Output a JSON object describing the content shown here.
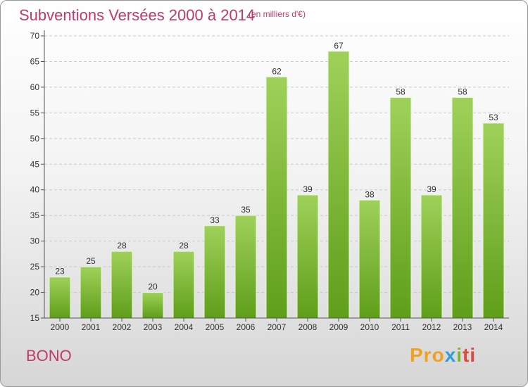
{
  "chart_data": {
    "type": "bar",
    "title": "Subventions Versées 2000 à 2014",
    "subtitle": "(en milliers d'€)",
    "categories": [
      "2000",
      "2001",
      "2002",
      "2003",
      "2004",
      "2005",
      "2006",
      "2007",
      "2008",
      "2009",
      "2010",
      "2011",
      "2012",
      "2013",
      "2014"
    ],
    "values": [
      23,
      25,
      28,
      20,
      28,
      33,
      35,
      62,
      39,
      67,
      38,
      58,
      39,
      58,
      53
    ],
    "ylim": [
      15,
      70
    ],
    "yticks": [
      15,
      20,
      25,
      30,
      35,
      40,
      45,
      50,
      55,
      60,
      65,
      70
    ],
    "grid": true,
    "bar_color_top": "#9fd15a",
    "bar_color_bottom": "#5f9e1a",
    "title_color": "#c0396a"
  },
  "footer": {
    "commune": "BONO",
    "logo": [
      "Pro",
      "x",
      "i",
      "ti"
    ]
  }
}
